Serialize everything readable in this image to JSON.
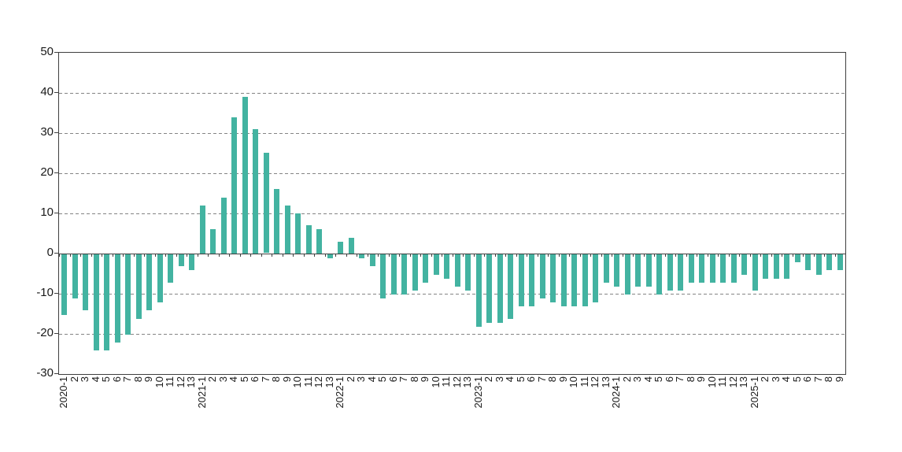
{
  "chart_data": {
    "type": "bar",
    "title": "",
    "xlabel": "",
    "ylabel": "",
    "legend": null,
    "ylim": [
      -30,
      50
    ],
    "yticks": [
      50,
      40,
      30,
      20,
      10,
      0,
      -10,
      -20,
      -30
    ],
    "gridlines": {
      "style": "dashed",
      "at": [
        40,
        30,
        20,
        10,
        -10,
        -20
      ]
    },
    "bar_color": "#43B3A1",
    "axis_color": "#3f3f3f",
    "grid_color": "#848484",
    "label_color": "#1a1a1a",
    "categories": [
      "2020-1",
      "2",
      "3",
      "4",
      "5",
      "6",
      "7",
      "8",
      "9",
      "10",
      "11",
      "12",
      "13",
      "2021-1",
      "2",
      "3",
      "4",
      "5",
      "6",
      "7",
      "8",
      "9",
      "10",
      "11",
      "12",
      "13",
      "2022-1",
      "2",
      "3",
      "4",
      "5",
      "6",
      "7",
      "8",
      "9",
      "10",
      "11",
      "12",
      "13",
      "2023-1",
      "2",
      "3",
      "4",
      "5",
      "6",
      "7",
      "8",
      "9",
      "10",
      "11",
      "12",
      "13",
      "2024-1",
      "2",
      "3",
      "4",
      "5",
      "6",
      "7",
      "8",
      "9",
      "10",
      "11",
      "12",
      "13",
      "2025-1",
      "2",
      "3",
      "4",
      "5",
      "6",
      "7",
      "8",
      "9"
    ],
    "values": [
      -15,
      -11,
      -14,
      -24,
      -24,
      -22,
      -20,
      -16,
      -14,
      -12,
      -7,
      -3,
      -4,
      12,
      6,
      14,
      34,
      39,
      31,
      25,
      16,
      12,
      10,
      7,
      6,
      -1,
      3,
      4,
      -1,
      -3,
      -11,
      -10,
      -10,
      -9,
      -7,
      -5,
      -6,
      -8,
      -9,
      -18,
      -17,
      -17,
      -16,
      -13,
      -13,
      -11,
      -12,
      -13,
      -13,
      -13,
      -12,
      -7,
      -8,
      -10,
      -8,
      -8,
      -10,
      -9,
      -9,
      -7,
      -7,
      -7,
      -7,
      -7,
      -5,
      -9,
      -6,
      -6,
      -6,
      -2,
      -4,
      -5,
      -4,
      -4
    ]
  }
}
